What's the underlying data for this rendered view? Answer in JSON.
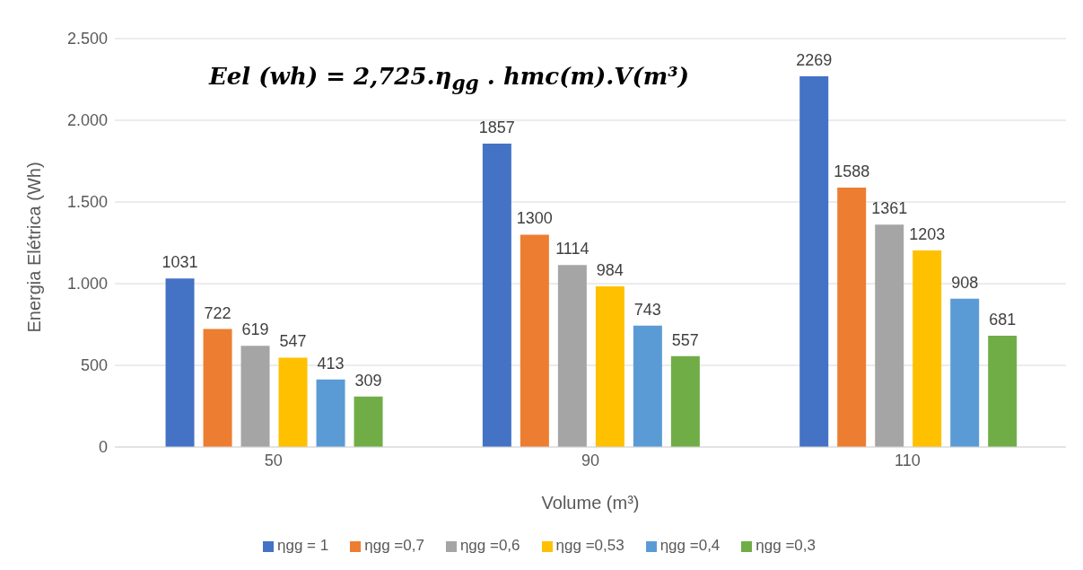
{
  "chart_data": {
    "type": "bar",
    "xlabel": "Volume (m³)",
    "ylabel": "Energia Elétrica (Wh)",
    "annotations": [
      "Eel (wh) = 2,725.η$_{gg}$ . hmc(m).V(m³)"
    ],
    "categories": [
      "50",
      "90",
      "110"
    ],
    "series": [
      {
        "name": "ηgg = 1",
        "color": "#4472c4",
        "values": [
          1031,
          1857,
          2269
        ]
      },
      {
        "name": "ηgg =0,7",
        "color": "#ed7d31",
        "values": [
          722,
          1300,
          1588
        ]
      },
      {
        "name": "ηgg =0,6",
        "color": "#a5a5a5",
        "values": [
          619,
          1114,
          1361
        ]
      },
      {
        "name": "ηgg =0,53",
        "color": "#ffc000",
        "values": [
          547,
          984,
          1203
        ]
      },
      {
        "name": "ηgg =0,4",
        "color": "#5b9bd5",
        "values": [
          413,
          743,
          908
        ]
      },
      {
        "name": "ηgg =0,3",
        "color": "#70ad47",
        "values": [
          309,
          557,
          681
        ]
      }
    ],
    "ylim": [
      0,
      2500
    ],
    "yticks": [
      0,
      {
        "value": 500,
        "label": "500"
      },
      {
        "value": 1000,
        "label": "1.000"
      },
      {
        "value": 1500,
        "label": "1.500"
      },
      {
        "value": 2000,
        "label": "2.000"
      },
      {
        "value": 2500,
        "label": "2.500"
      }
    ],
    "grid": "y",
    "legend": "bottom",
    "data_labels": true
  }
}
